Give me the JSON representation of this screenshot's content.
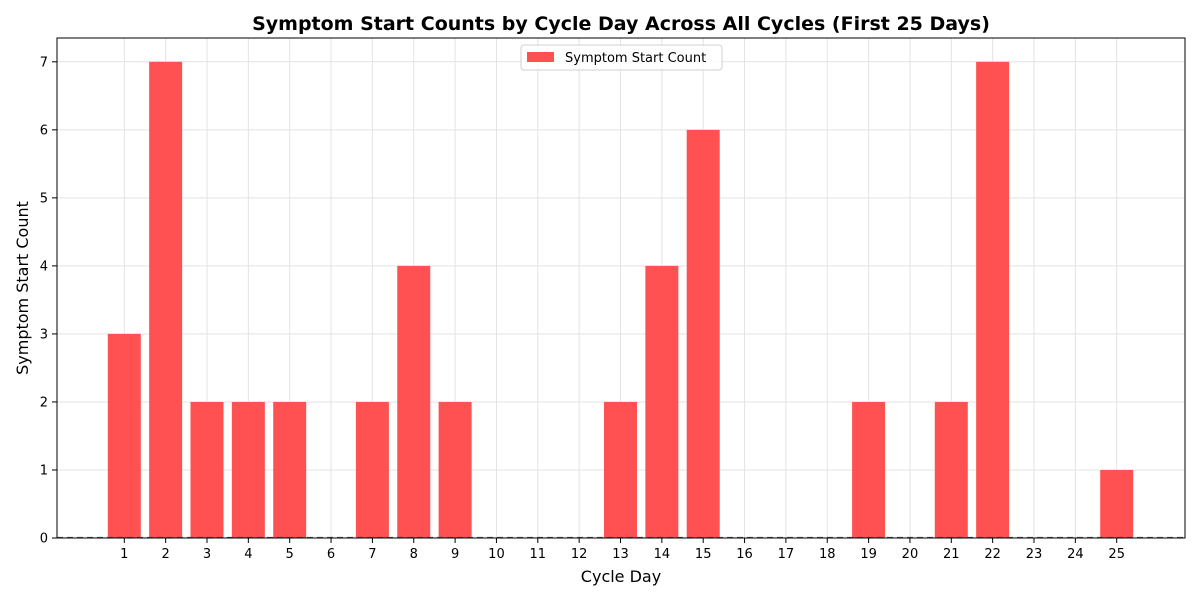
{
  "chart_data": {
    "type": "bar",
    "title": "Symptom Start Counts by Cycle Day Across All Cycles (First 25 Days)",
    "xlabel": "Cycle Day",
    "ylabel": "Symptom Start Count",
    "categories": [
      "1",
      "2",
      "3",
      "4",
      "5",
      "6",
      "7",
      "8",
      "9",
      "10",
      "11",
      "12",
      "13",
      "14",
      "15",
      "16",
      "17",
      "18",
      "19",
      "20",
      "21",
      "22",
      "23",
      "24",
      "25"
    ],
    "series": [
      {
        "name": "Symptom Start Count",
        "values": [
          3,
          7,
          2,
          2,
          2,
          0,
          2,
          4,
          2,
          0,
          0,
          0,
          2,
          4,
          6,
          0,
          0,
          0,
          2,
          0,
          2,
          7,
          0,
          0,
          1
        ],
        "color": "#ff5151"
      }
    ],
    "ylim": [
      0,
      7.35
    ],
    "yticks": [
      0,
      1,
      2,
      3,
      4,
      5,
      6,
      7
    ],
    "grid": true,
    "legend_position": "top-center",
    "baseline_style": "dashed"
  }
}
